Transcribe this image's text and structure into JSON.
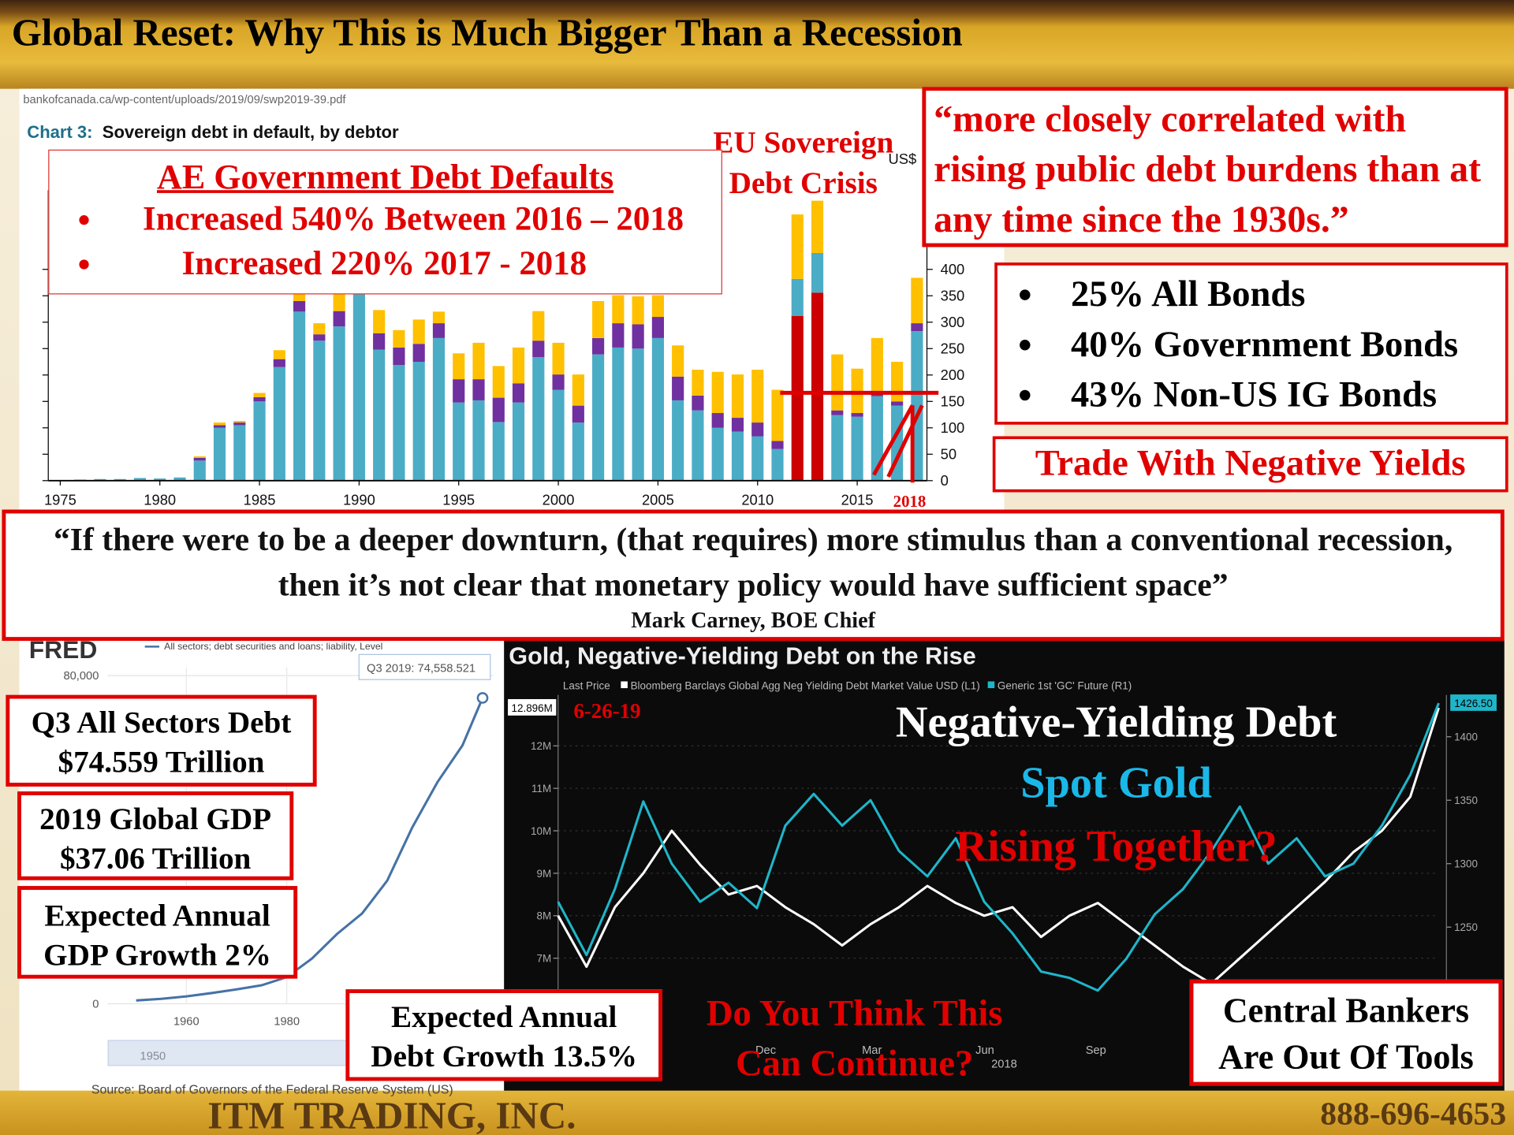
{
  "header": {
    "title": "Global Reset: Why This is Much Bigger Than a Recession"
  },
  "ae_box": {
    "title": "AE Government Debt Defaults",
    "bullets": [
      "Increased 540% Between 2016 – 2018",
      "Increased 220% 2017 - 2018"
    ]
  },
  "correlation_quote": "“more closely correlated with rising public debt burdens than at any time since the 1930s.”",
  "bond_box": {
    "bullets": [
      "25% All Bonds",
      "40% Government Bonds",
      "43% Non-US IG Bonds"
    ],
    "caption": "Trade With Negative Yields"
  },
  "carney_quote": {
    "text": "“If there were to be a deeper downturn, (that requires) more stimulus than a conventional recession, then it’s not clear that monetary policy would have sufficient space”",
    "attribution": "Mark Carney, BOE Chief"
  },
  "left_boxes": [
    {
      "lines": [
        "Q3 All Sectors Debt",
        "$74.559 Trillion"
      ]
    },
    {
      "lines": [
        "2019 Global GDP",
        "$37.06 Trillion"
      ]
    },
    {
      "lines": [
        "Expected Annual",
        "GDP Growth 2%"
      ]
    }
  ],
  "debt_growth_box": {
    "lines": [
      "Expected Annual",
      "Debt Growth 13.5%"
    ]
  },
  "footer": {
    "company": "ITM TRADING, INC.",
    "phone": "888-696-4653"
  },
  "chart_data": [
    {
      "type": "bar",
      "stacked": true,
      "source_url": "bankofcanada.ca/wp-content/uploads/2019/09/swp2019-39.pdf",
      "chart_label": "Chart 3:",
      "title": "Sovereign debt in default, by debtor",
      "unit": "US$",
      "annotations": {
        "crisis": "EU Sovereign Debt Crisis",
        "year": "2018"
      },
      "x": [
        1975,
        1976,
        1977,
        1978,
        1979,
        1980,
        1981,
        1982,
        1983,
        1984,
        1985,
        1986,
        1987,
        1988,
        1989,
        1990,
        1991,
        1992,
        1993,
        1994,
        1995,
        1996,
        1997,
        1998,
        1999,
        2000,
        2001,
        2002,
        2003,
        2004,
        2005,
        2006,
        2007,
        2008,
        2009,
        2010,
        2011,
        2012,
        2013,
        2014,
        2015,
        2016,
        2017,
        2018
      ],
      "xlim": [
        1974.4,
        2018.5
      ],
      "xticks": [
        1975,
        1980,
        1985,
        1990,
        1995,
        2000,
        2005,
        2010,
        2015
      ],
      "ylim": [
        0,
        550
      ],
      "yticks": [
        0,
        50,
        100,
        150,
        200,
        250,
        300,
        350,
        400
      ],
      "series": [
        {
          "color": "#cc0000",
          "values": [
            0,
            0,
            0,
            0,
            0,
            0,
            0,
            0,
            0,
            0,
            0,
            0,
            0,
            0,
            0,
            0,
            0,
            0,
            0,
            0,
            0,
            0,
            0,
            0,
            0,
            0,
            0,
            0,
            0,
            0,
            0,
            0,
            0,
            0,
            0,
            0,
            0,
            312,
            356,
            0,
            0,
            0,
            0,
            0
          ]
        },
        {
          "color": "#4bacc6",
          "values": [
            1,
            2,
            3,
            3,
            5,
            4,
            6,
            38,
            100,
            105,
            150,
            215,
            320,
            265,
            292,
            370,
            248,
            219,
            225,
            270,
            148,
            152,
            111,
            148,
            234,
            172,
            110,
            239,
            252,
            250,
            270,
            152,
            133,
            100,
            93,
            84,
            60,
            70,
            75,
            124,
            121,
            160,
            142,
            283
          ]
        },
        {
          "color": "#7030a0",
          "values": [
            0,
            0,
            0,
            0,
            0,
            0,
            0,
            5,
            5,
            5,
            8,
            15,
            20,
            12,
            29,
            10,
            31,
            33,
            34,
            28,
            44,
            40,
            46,
            36,
            31,
            29,
            32,
            31,
            46,
            46,
            40,
            45,
            28,
            28,
            26,
            26,
            15,
            0,
            0,
            9,
            7,
            10,
            8,
            15
          ]
        },
        {
          "color": "#ffc000",
          "values": [
            0,
            0,
            0,
            0,
            0,
            0,
            0,
            3,
            5,
            3,
            8,
            17,
            25,
            21,
            34,
            10,
            44,
            33,
            46,
            22,
            49,
            69,
            60,
            68,
            56,
            60,
            59,
            70,
            53,
            53,
            41,
            59,
            49,
            78,
            82,
            100,
            97,
            122,
            99,
            106,
            84,
            100,
            75,
            86
          ]
        }
      ]
    },
    {
      "type": "line",
      "logo": "FRED",
      "legend": "All sectors; debt securities and loans; liability, Level",
      "tooltip": "Q3 2019: 74,558.521",
      "slider_label": "1950",
      "source": "Source: Board of Governors of the Federal Reserve System (US)",
      "x": [
        1950,
        1955,
        1960,
        1965,
        1970,
        1975,
        1980,
        1985,
        1990,
        1995,
        2000,
        2005,
        2010,
        2015,
        2019
      ],
      "xlim": [
        1942,
        2021
      ],
      "xticks": [
        1960,
        1980
      ],
      "ylim": [
        0,
        82000
      ],
      "yticks": [
        0,
        {
          "value": 80000,
          "label": "80,000"
        }
      ],
      "series": [
        {
          "color": "#4572a7",
          "values": [
            800,
            1200,
            1800,
            2600,
            3500,
            4500,
            6500,
            11000,
            17000,
            22000,
            30000,
            43000,
            54000,
            63000,
            74558.521
          ]
        }
      ]
    },
    {
      "type": "line",
      "title": "Gold, Negative-Yielding Debt on the Rise",
      "legend_title": "Last Price",
      "xtick_labels": [
        "Dec",
        "Mar",
        "Jun",
        "Sep"
      ],
      "xtick_year": "2018",
      "ylim": [
        5.7,
        13.2
      ],
      "yticks": [
        {
          "value": 7,
          "label": "7M"
        },
        {
          "value": 8,
          "label": "8M"
        },
        {
          "value": 9,
          "label": "9M"
        },
        {
          "value": 10,
          "label": "10M"
        },
        {
          "value": 11,
          "label": "11M"
        },
        {
          "value": 12,
          "label": "12M"
        },
        {
          "value": 12.896,
          "label": "12.896M"
        }
      ],
      "y2lim": [
        1182,
        1433
      ],
      "y2ticks": [
        1250,
        1300,
        1350,
        1400,
        {
          "value": 1426.5,
          "label": "1426.50"
        }
      ],
      "series": [
        {
          "name": "Bloomberg Barclays Global Agg Neg Yielding Debt Market Value USD (L1)",
          "color": "#ffffff",
          "values": [
            8.0,
            6.8,
            8.2,
            9.0,
            10.0,
            9.2,
            8.5,
            8.7,
            8.2,
            7.8,
            7.3,
            7.8,
            8.2,
            8.7,
            8.3,
            8.0,
            8.2,
            7.5,
            8.0,
            8.3,
            7.8,
            7.3,
            6.8,
            6.4,
            7.0,
            7.6,
            8.2,
            8.8,
            9.5,
            10.0,
            10.8,
            12.896
          ]
        },
        {
          "name": "Generic 1st 'GC' Future (R1)",
          "color": "#1fb5c9",
          "axis": "y2",
          "values": [
            1270,
            1228,
            1280,
            1349,
            1300,
            1270,
            1285,
            1265,
            1330,
            1355,
            1330,
            1350,
            1310,
            1290,
            1320,
            1270,
            1245,
            1215,
            1210,
            1200,
            1225,
            1260,
            1280,
            1310,
            1345,
            1300,
            1320,
            1290,
            1300,
            1330,
            1370,
            1426.5
          ]
        }
      ],
      "annotations": {
        "date": "6-26-19",
        "line1": "Negative-Yielding Debt",
        "line2": "Spot Gold",
        "line3": "Rising Together?",
        "question": "Do You Think This Can Continue?",
        "tools": "Central Bankers Are Out Of Tools"
      }
    }
  ]
}
